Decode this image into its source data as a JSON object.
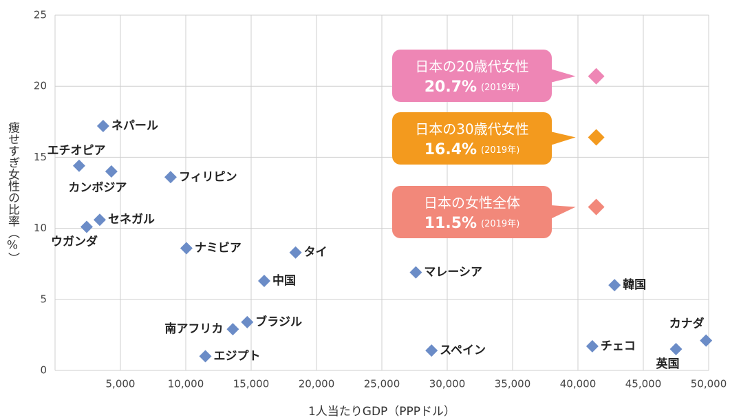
{
  "chart_data": {
    "type": "scatter",
    "x_label": "1人当たりGDP（PPPドル）",
    "y_label": "痩せすぎ女性の比率（%）",
    "xlim": [
      0,
      50000
    ],
    "xticks": [
      {
        "value": 5000,
        "label": "5,000"
      },
      {
        "value": 10000,
        "label": "10,000"
      },
      {
        "value": 15000,
        "label": "15,000"
      },
      {
        "value": 20000,
        "label": "20,000"
      },
      {
        "value": 25000,
        "label": "25,000"
      },
      {
        "value": 30000,
        "label": "30,000"
      },
      {
        "value": 35000,
        "label": "35,000"
      },
      {
        "value": 40000,
        "label": "40,000"
      },
      {
        "value": 45000,
        "label": "45,000"
      },
      {
        "value": 50000,
        "label": "50,000"
      }
    ],
    "ylim": [
      0,
      25
    ],
    "yticks": [
      0,
      5,
      10,
      15,
      20,
      25
    ],
    "grid": true,
    "series": [
      {
        "color": "#6b8cc7",
        "labels": [
          "ネパール",
          "エチオピア",
          "カンボジア",
          "フィリピン",
          "セネガル",
          "ウガンダ",
          "ナミビア",
          "タイ",
          "中国",
          "マレーシア",
          "韓国",
          "ブラジル",
          "南アフリカ",
          "エジプト",
          "スペイン",
          "チェコ",
          "英国",
          "カナダ"
        ],
        "x": [
          3680,
          1840,
          4310,
          8840,
          3420,
          2420,
          10050,
          18400,
          16000,
          27600,
          42800,
          14700,
          13600,
          11500,
          28800,
          41100,
          47500,
          49800
        ],
        "values": [
          17.2,
          14.4,
          14.0,
          13.6,
          10.6,
          10.1,
          8.6,
          8.3,
          6.3,
          6.9,
          6.0,
          3.4,
          2.9,
          1.0,
          1.4,
          1.7,
          1.5,
          2.1
        ]
      }
    ],
    "annotations": [
      {
        "title": "日本の20歳代女性",
        "x": 41400,
        "value": 20.7,
        "value_label": "20.7%",
        "note": "(2019年)",
        "color": "#ee86b5"
      },
      {
        "title": "日本の30歳代女性",
        "x": 41400,
        "value": 16.4,
        "value_label": "16.4%",
        "note": "(2019年)",
        "color": "#f39a1e"
      },
      {
        "title": "日本の女性全体",
        "x": 41400,
        "value": 11.5,
        "value_label": "11.5%",
        "note": "(2019年)",
        "color": "#f2887a"
      }
    ]
  }
}
